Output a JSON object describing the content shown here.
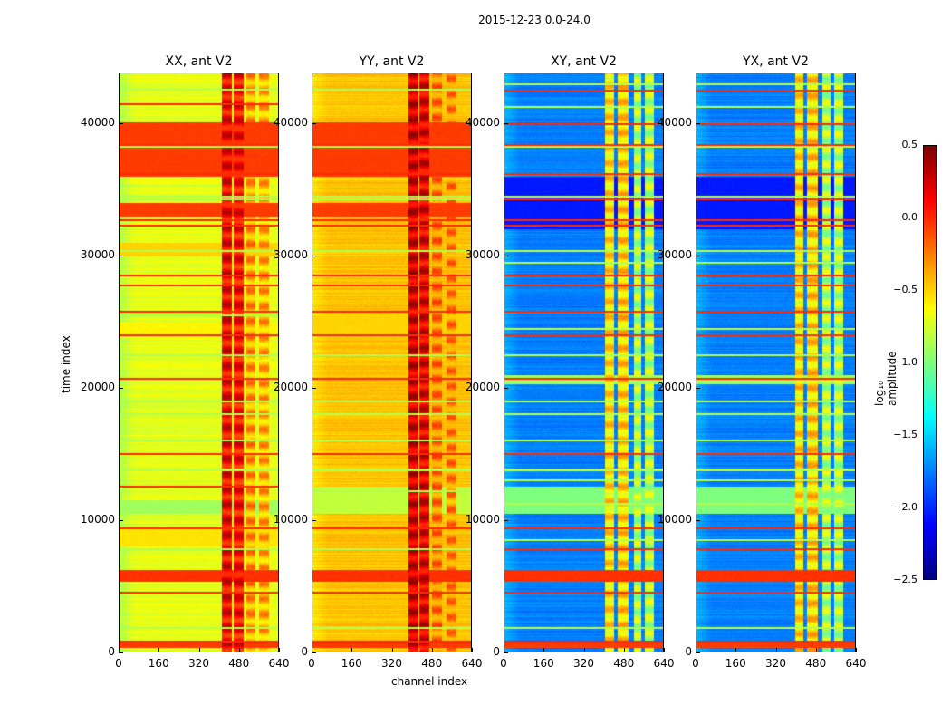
{
  "chart_data": {
    "type": "heatmap",
    "title": "2015-12-23 0.0-24.0",
    "xlabel": "channel index",
    "ylabel": "time index",
    "xlim": [
      0,
      640
    ],
    "ylim": [
      0,
      43800
    ],
    "xticks": [
      "0",
      "160",
      "320",
      "480",
      "640"
    ],
    "yticks": [
      "0",
      "10000",
      "20000",
      "30000",
      "40000"
    ],
    "colorbar": {
      "label": "log₁₀ amplitude",
      "range": [
        -2.5,
        0.5
      ],
      "ticks": [
        "0.5",
        "0.0",
        "−0.5",
        "−1.0",
        "−1.5",
        "−2.0",
        "−2.5"
      ],
      "colormap": "jet"
    },
    "panels": [
      {
        "title": "XX, ant V2",
        "base": -0.7,
        "edge_base": -0.85,
        "columns": [
          [
            410,
            450,
            0.15
          ],
          [
            460,
            500,
            0.1
          ],
          [
            510,
            545,
            -0.35
          ],
          [
            560,
            600,
            -0.4
          ]
        ],
        "bands": [
          [
            36000,
            40100,
            -0.05
          ],
          [
            33000,
            34000,
            -0.05
          ],
          [
            5300,
            6200,
            -0.02
          ],
          [
            24000,
            25000,
            -0.6
          ],
          [
            10500,
            11500,
            -0.9
          ],
          [
            8000,
            9500,
            -0.55
          ],
          [
            30000,
            31000,
            -0.5
          ],
          [
            300,
            800,
            -0.05
          ]
        ],
        "lines_hot": [
          800,
          4500,
          9400,
          12500,
          15000,
          20700,
          24000,
          25800,
          27800,
          28500,
          32300,
          32700,
          36200,
          38400,
          41500
        ],
        "lines_cool": [
          1800,
          7800,
          13800,
          16000,
          18000,
          19000,
          22500,
          25500,
          30400,
          34300,
          34500,
          38300,
          42600
        ]
      },
      {
        "title": "YY, ant V2",
        "base": -0.45,
        "edge_base": -0.55,
        "columns": [
          [
            385,
            425,
            0.25
          ],
          [
            430,
            470,
            0.2
          ],
          [
            480,
            520,
            -0.25
          ],
          [
            540,
            580,
            -0.3
          ]
        ],
        "bands": [
          [
            36000,
            40100,
            -0.05
          ],
          [
            33000,
            34000,
            -0.05
          ],
          [
            5300,
            6200,
            -0.02
          ],
          [
            10500,
            12500,
            -0.8
          ],
          [
            24000,
            25500,
            -0.5
          ],
          [
            300,
            800,
            -0.05
          ]
        ],
        "lines_hot": [
          800,
          4500,
          9400,
          15000,
          20700,
          24000,
          25800,
          27800,
          28500,
          32300,
          32700,
          36200,
          38400
        ],
        "lines_cool": [
          1800,
          7800,
          12200,
          13800,
          16000,
          18000,
          19000,
          22500,
          30400,
          34300,
          34500,
          38300,
          42600
        ]
      },
      {
        "title": "XY, ant V2",
        "base": -1.75,
        "edge_base": -1.6,
        "columns": [
          [
            405,
            440,
            -0.55
          ],
          [
            455,
            500,
            -0.5
          ],
          [
            520,
            550,
            -0.85
          ],
          [
            565,
            600,
            -0.85
          ]
        ],
        "bands": [
          [
            32000,
            36000,
            -2.05
          ],
          [
            5300,
            6200,
            -0.02
          ],
          [
            10500,
            12500,
            -1.0
          ],
          [
            20300,
            21000,
            -0.9
          ],
          [
            300,
            800,
            -0.05
          ]
        ],
        "lines_hot": [
          800,
          4500,
          7800,
          9400,
          15000,
          20700,
          24000,
          25800,
          27800,
          28500,
          32300,
          32700,
          34300,
          36200,
          38400,
          40000,
          42500
        ],
        "lines_cool": [
          1800,
          8500,
          11200,
          13000,
          13800,
          16000,
          18000,
          19000,
          22500,
          24500,
          29500,
          30400,
          34500,
          38300,
          41300,
          43000
        ]
      },
      {
        "title": "YX, ant V2",
        "base": -1.75,
        "edge_base": -1.6,
        "columns": [
          [
            395,
            430,
            -0.55
          ],
          [
            445,
            490,
            -0.5
          ],
          [
            505,
            540,
            -0.85
          ],
          [
            555,
            590,
            -0.85
          ]
        ],
        "bands": [
          [
            32000,
            36000,
            -2.05
          ],
          [
            5300,
            6200,
            -0.02
          ],
          [
            10500,
            12500,
            -1.0
          ],
          [
            20300,
            21000,
            -0.9
          ],
          [
            300,
            800,
            -0.05
          ]
        ],
        "lines_hot": [
          800,
          4500,
          7800,
          9400,
          15000,
          20700,
          24000,
          25800,
          27800,
          28500,
          32300,
          32700,
          34300,
          36200,
          38400,
          40000,
          42500
        ],
        "lines_cool": [
          1800,
          8500,
          11200,
          13000,
          13800,
          16000,
          18000,
          19000,
          22500,
          24500,
          29500,
          30400,
          34500,
          38300,
          41300,
          43000
        ]
      }
    ]
  }
}
